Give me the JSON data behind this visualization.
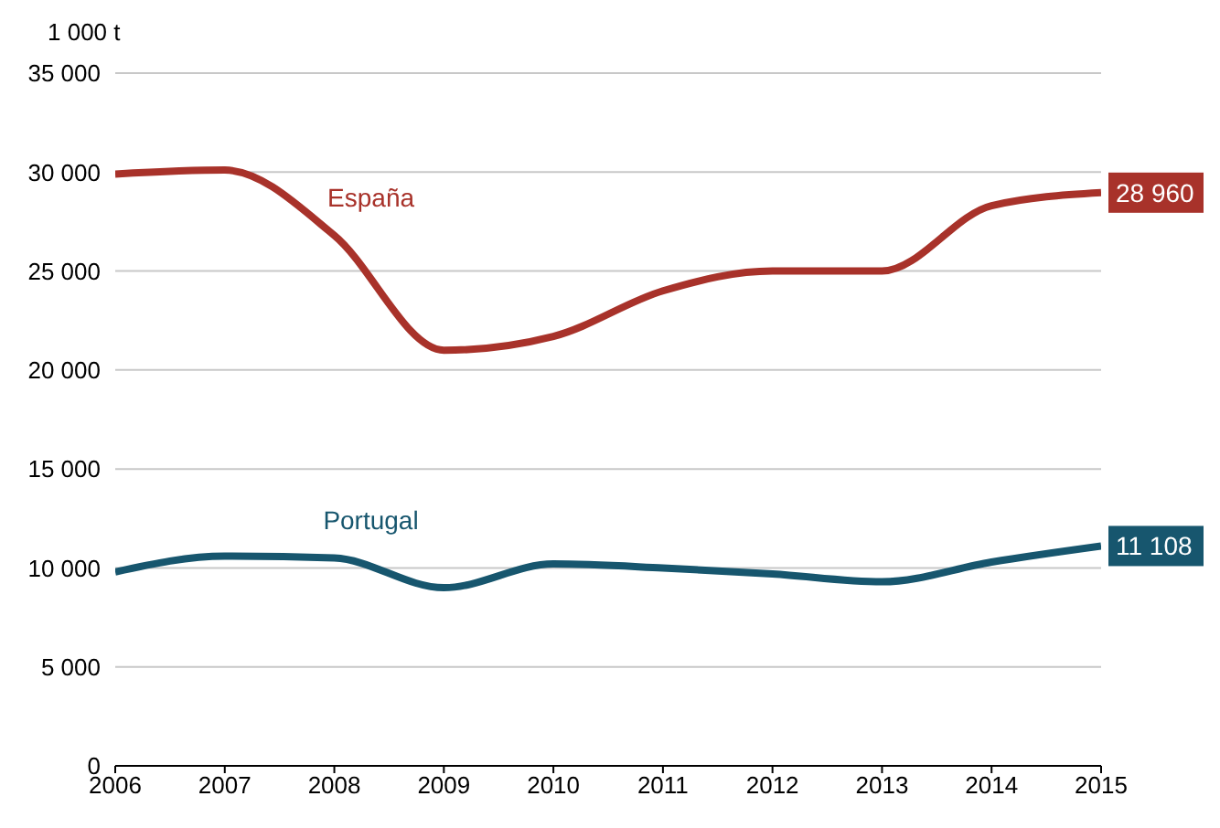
{
  "chart_data": {
    "type": "line",
    "ylabel": "1 000 t",
    "x": [
      2006,
      2007,
      2008,
      2009,
      2010,
      2011,
      2012,
      2013,
      2014,
      2015
    ],
    "xlim": [
      2006,
      2015
    ],
    "xticks": [
      2006,
      2007,
      2008,
      2009,
      2010,
      2011,
      2012,
      2013,
      2014,
      2015
    ],
    "ylim": [
      0,
      35000
    ],
    "yticks": [
      0,
      {
        "value": 5000,
        "label": "5 000"
      },
      {
        "value": 10000,
        "label": "10 000"
      },
      {
        "value": 15000,
        "label": "15 000"
      },
      {
        "value": 20000,
        "label": "20 000"
      },
      {
        "value": 25000,
        "label": "25 000"
      },
      {
        "value": 30000,
        "label": "30 000"
      },
      {
        "value": 35000,
        "label": "35 000"
      }
    ],
    "grid": "y",
    "marker": "none",
    "line_style": "solid",
    "series": [
      {
        "name": "España",
        "color": "#a8322a",
        "values": [
          29900,
          30100,
          26800,
          21000,
          21700,
          24000,
          25000,
          25000,
          28300,
          28960
        ],
        "value_labels": [
          null,
          null,
          null,
          null,
          null,
          null,
          null,
          null,
          null,
          "28 960"
        ]
      },
      {
        "name": "Portugal",
        "color": "#17566e",
        "values": [
          9800,
          10600,
          10500,
          9000,
          10200,
          10000,
          9700,
          9300,
          10300,
          11108
        ],
        "value_labels": [
          null,
          null,
          null,
          null,
          null,
          null,
          null,
          null,
          null,
          "11 108"
        ]
      }
    ]
  }
}
